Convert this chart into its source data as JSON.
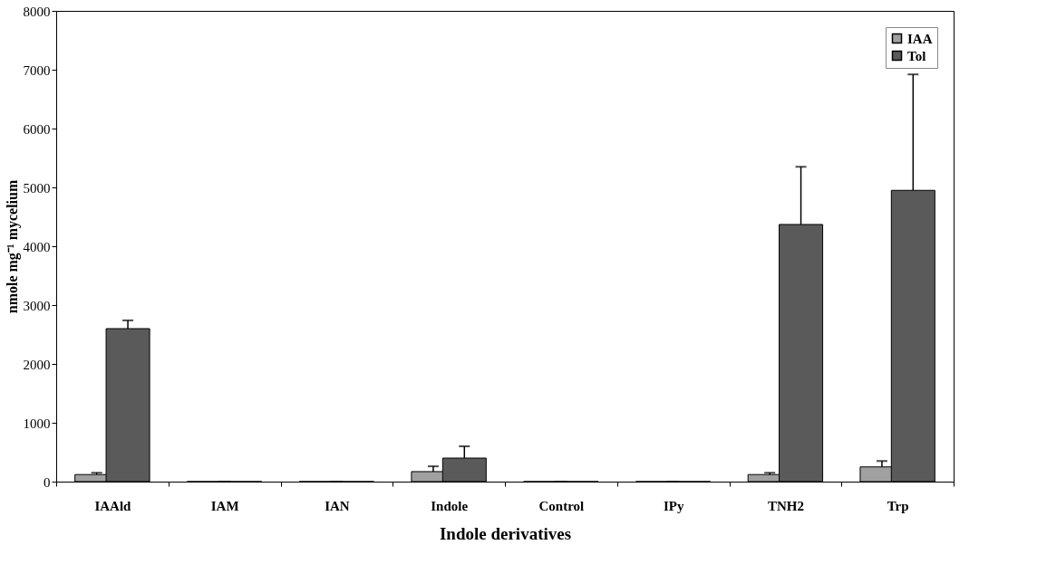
{
  "chart_data": {
    "type": "bar",
    "xlabel": "Indole derivatives",
    "ylabel": "nmole mg⁻¹ mycelium",
    "categories": [
      "IAAld",
      "IAM",
      "IAN",
      "Indole",
      "Control",
      "IPy",
      "TNH2",
      "Trp"
    ],
    "series": [
      {
        "name": "IAA",
        "color": "#a0a0a0",
        "values": [
          120,
          0,
          0,
          170,
          0,
          0,
          120,
          250
        ],
        "errors": [
          [
            120,
            150
          ],
          null,
          null,
          [
            170,
            260
          ],
          null,
          null,
          [
            120,
            150
          ],
          [
            250,
            350
          ]
        ]
      },
      {
        "name": "Tol",
        "color": "#5a5a5a",
        "values": [
          2600,
          0,
          0,
          400,
          0,
          0,
          4370,
          4950
        ],
        "errors": [
          [
            2600,
            2740
          ],
          null,
          null,
          [
            400,
            600
          ],
          null,
          null,
          [
            4370,
            5350
          ],
          [
            4950,
            6920
          ]
        ]
      }
    ],
    "ylim": [
      0,
      8000
    ],
    "yticks": [
      0,
      1000,
      2000,
      3000,
      4000,
      5000,
      6000,
      7000,
      8000
    ],
    "grid": false,
    "legend": "top right"
  }
}
